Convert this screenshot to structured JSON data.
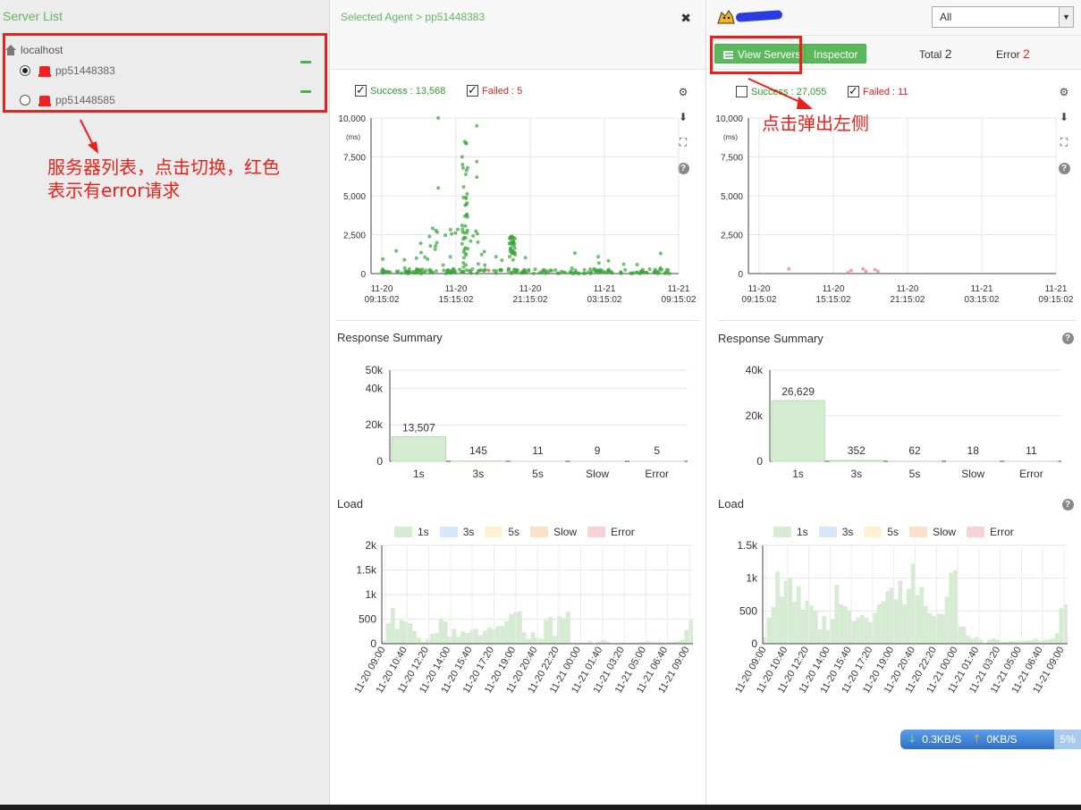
{
  "server_list": {
    "title": "Server List",
    "root": "localhost",
    "servers": [
      {
        "name": "pp51448383",
        "selected": true
      },
      {
        "name": "pp51448585",
        "selected": false
      }
    ],
    "annotation": "服务器列表，点击切换，红色\n表示有error请求"
  },
  "left_agent": {
    "selected_label": "Selected Agent > pp51448383",
    "success_label": "Success : 13,568",
    "failed_label": "Failed : 5",
    "success_checked": true,
    "failed_checked": true,
    "response_summary": "Response Summary",
    "load_title": "Load"
  },
  "right_agent": {
    "select_value": "All",
    "view_servers_label": "View Servers",
    "inspector_label": "Inspector",
    "total_label": "Total",
    "total_value": "2",
    "error_label": "Error",
    "error_value": "2",
    "success_label": "Success : 27,055",
    "failed_label": "Failed : 11",
    "success_checked": false,
    "failed_checked": true,
    "annotation": "点击弹出左侧",
    "response_summary": "Response Summary",
    "load_title": "Load"
  },
  "legend": [
    "1s",
    "3s",
    "5s",
    "Slow",
    "Error"
  ],
  "colors": {
    "green": "#5cb85c",
    "accent_red": "#e8221a",
    "bar_green": "#d5ecd2"
  },
  "network": {
    "down": "0.3KB/S",
    "up": "0KB/S",
    "pct": "5%"
  },
  "chart_data": [
    {
      "type": "scatter",
      "title": "",
      "ylabel": "(ms)",
      "yticks": [
        "10,000",
        "7,500",
        "5,000",
        "2,500",
        "0"
      ],
      "ylim": [
        0,
        10000
      ],
      "xticks": [
        "11-20\n09:15:02",
        "11-20\n15:15:02",
        "11-20\n21:15:02",
        "11-21\n03:15:02",
        "11-21\n09:15:02"
      ],
      "series": [
        {
          "name": "Success"
        },
        {
          "name": "Failed"
        }
      ]
    },
    {
      "type": "bar",
      "title": "Response Summary",
      "categories": [
        "1s",
        "3s",
        "5s",
        "Slow",
        "Error"
      ],
      "values": [
        13507,
        145,
        11,
        9,
        5
      ],
      "value_labels": [
        "13,507",
        "145",
        "11",
        "9",
        "5"
      ],
      "yticks": [
        "50k",
        "40k",
        "20k",
        "0"
      ]
    },
    {
      "type": "bar",
      "title": "Load",
      "yticks": [
        "2k",
        "1.5k",
        "1k",
        "500",
        "0"
      ],
      "ylim": [
        0,
        2000
      ],
      "xticks": [
        "11-20 09:00",
        "11-20 10:40",
        "11-20 12:20",
        "11-20 14:00",
        "11-20 15:40",
        "11-20 17:20",
        "11-20 19:00",
        "11-20 20:40",
        "11-20 22:20",
        "11-21 00:00",
        "11-21 01:40",
        "11-21 03:20",
        "11-21 05:00",
        "11-21 06:40",
        "11-21 09:00"
      ],
      "values": [
        60,
        420,
        720,
        300,
        480,
        450,
        420,
        260,
        120,
        40,
        100,
        200,
        220,
        500,
        450,
        150,
        300,
        140,
        250,
        220,
        270,
        300,
        170,
        260,
        330,
        300,
        360,
        360,
        460,
        600,
        640,
        660,
        230,
        100,
        230,
        120,
        100,
        480,
        540,
        160,
        560,
        520,
        660,
        20,
        20,
        20,
        20,
        50,
        10,
        40,
        80,
        40,
        10,
        10,
        20,
        20,
        20,
        20,
        30,
        40,
        60,
        30,
        40,
        40,
        20,
        40,
        40,
        50,
        80,
        280,
        480
      ]
    },
    {
      "type": "scatter",
      "title": "",
      "ylabel": "(ms)",
      "yticks": [
        "10,000",
        "7,500",
        "5,000",
        "2,500",
        "0"
      ],
      "ylim": [
        0,
        10000
      ],
      "xticks": [
        "11-20\n09:15:02",
        "11-20\n15:15:02",
        "11-20\n21:15:02",
        "11-21\n03:15:02",
        "11-21\n09:15:02"
      ],
      "series": [
        {
          "name": "Success"
        },
        {
          "name": "Failed"
        }
      ]
    },
    {
      "type": "bar",
      "title": "Response Summary",
      "categories": [
        "1s",
        "3s",
        "5s",
        "Slow",
        "Error"
      ],
      "values": [
        26629,
        352,
        62,
        18,
        11
      ],
      "value_labels": [
        "26,629",
        "352",
        "62",
        "18",
        "11"
      ],
      "yticks": [
        "40k",
        "20k",
        "0"
      ]
    },
    {
      "type": "bar",
      "title": "Load",
      "yticks": [
        "1.5k",
        "1k",
        "500",
        "0"
      ],
      "ylim": [
        0,
        1500
      ],
      "xticks": [
        "11-20 09:00",
        "11-20 10:40",
        "11-20 12:20",
        "11-20 14:00",
        "11-20 15:40",
        "11-20 17:20",
        "11-20 19:00",
        "11-20 20:40",
        "11-20 22:20",
        "11-21 00:00",
        "11-21 01:40",
        "11-21 03:20",
        "11-21 05:00",
        "11-21 06:40",
        "11-21 09:00"
      ],
      "values": [
        100,
        400,
        560,
        1100,
        720,
        960,
        1000,
        640,
        880,
        520,
        660,
        580,
        500,
        220,
        420,
        210,
        380,
        900,
        600,
        570,
        500,
        350,
        400,
        440,
        400,
        330,
        470,
        600,
        650,
        800,
        860,
        680,
        960,
        600,
        840,
        1220,
        740,
        860,
        580,
        470,
        420,
        460,
        450,
        720,
        1080,
        1120,
        260,
        260,
        120,
        80,
        100,
        60,
        10,
        60,
        80,
        60,
        30,
        30,
        40,
        40,
        40,
        40,
        50,
        50,
        80,
        40,
        60,
        60,
        80,
        160,
        540,
        600
      ]
    }
  ]
}
